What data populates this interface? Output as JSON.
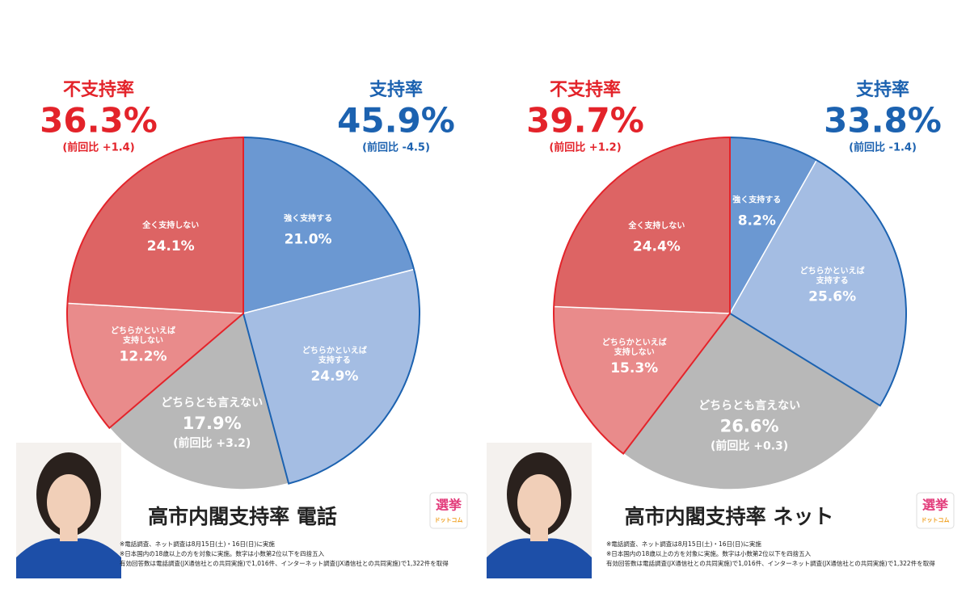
{
  "chart_data": [
    {
      "type": "pie",
      "title": "高市内閣支持率 電話",
      "categories": [
        "強く支持する",
        "どちらかといえば\n支持する",
        "どちらとも言えない",
        "どちらかといえば\n支持しない",
        "全く支持しない"
      ],
      "values": [
        21.0,
        24.9,
        17.9,
        12.2,
        24.1
      ],
      "value_labels": [
        "21.0%",
        "24.9%",
        "17.9%",
        "12.2%",
        "24.1%"
      ],
      "slice_notes": [
        null,
        null,
        "(前回比 +3.2)",
        null,
        null
      ],
      "colors": [
        "#6b98d2",
        "#a4bde3",
        "#b8b8b8",
        "#e98b8b",
        "#dd6464"
      ],
      "summary": [
        {
          "label": "不支持率",
          "value_label": "36.3%",
          "change": "(前回比 +1.4)",
          "color": "#e3232a"
        },
        {
          "label": "支持率",
          "value_label": "45.9%",
          "change": "(前回比 -4.5)",
          "color": "#1c62b0"
        }
      ],
      "footnotes": [
        "※電話調査、ネット調査は8月15日(土)・16日(日)に実施",
        "※日本国内の18歳以上の方を対象に実施。数字は小数第2位以下を四捨五入",
        "有効回答数は電話調査(JX通信社との共同実施)で1,016件、インターネット調査(JX通信社との共同実施)で1,322件を取得"
      ],
      "logo": [
        "選挙",
        "ドットコム"
      ]
    },
    {
      "type": "pie",
      "title": "高市内閣支持率 ネット",
      "categories": [
        "強く支持する",
        "どちらかといえば\n支持する",
        "どちらとも言えない",
        "どちらかといえば\n支持しない",
        "全く支持しない"
      ],
      "values": [
        8.2,
        25.6,
        26.6,
        15.3,
        24.4
      ],
      "value_labels": [
        "8.2%",
        "25.6%",
        "26.6%",
        "15.3%",
        "24.4%"
      ],
      "slice_notes": [
        null,
        null,
        "(前回比 +0.3)",
        null,
        null
      ],
      "colors": [
        "#6b98d2",
        "#a4bde3",
        "#b8b8b8",
        "#e98b8b",
        "#dd6464"
      ],
      "summary": [
        {
          "label": "不支持率",
          "value_label": "39.7%",
          "change": "(前回比 +1.2)",
          "color": "#e3232a"
        },
        {
          "label": "支持率",
          "value_label": "33.8%",
          "change": "(前回比 -1.4)",
          "color": "#1c62b0"
        }
      ],
      "footnotes": [
        "※電話調査、ネット調査は8月15日(土)・16日(日)に実施",
        "※日本国内の18歳以上の方を対象に実施。数字は小数第2位以下を四捨五入",
        "有効回答数は電話調査(JX通信社との共同実施)で1,016件、インターネット調査(JX通信社との共同実施)で1,322件を取得"
      ],
      "logo": [
        "選挙",
        "ドットコム"
      ]
    }
  ]
}
